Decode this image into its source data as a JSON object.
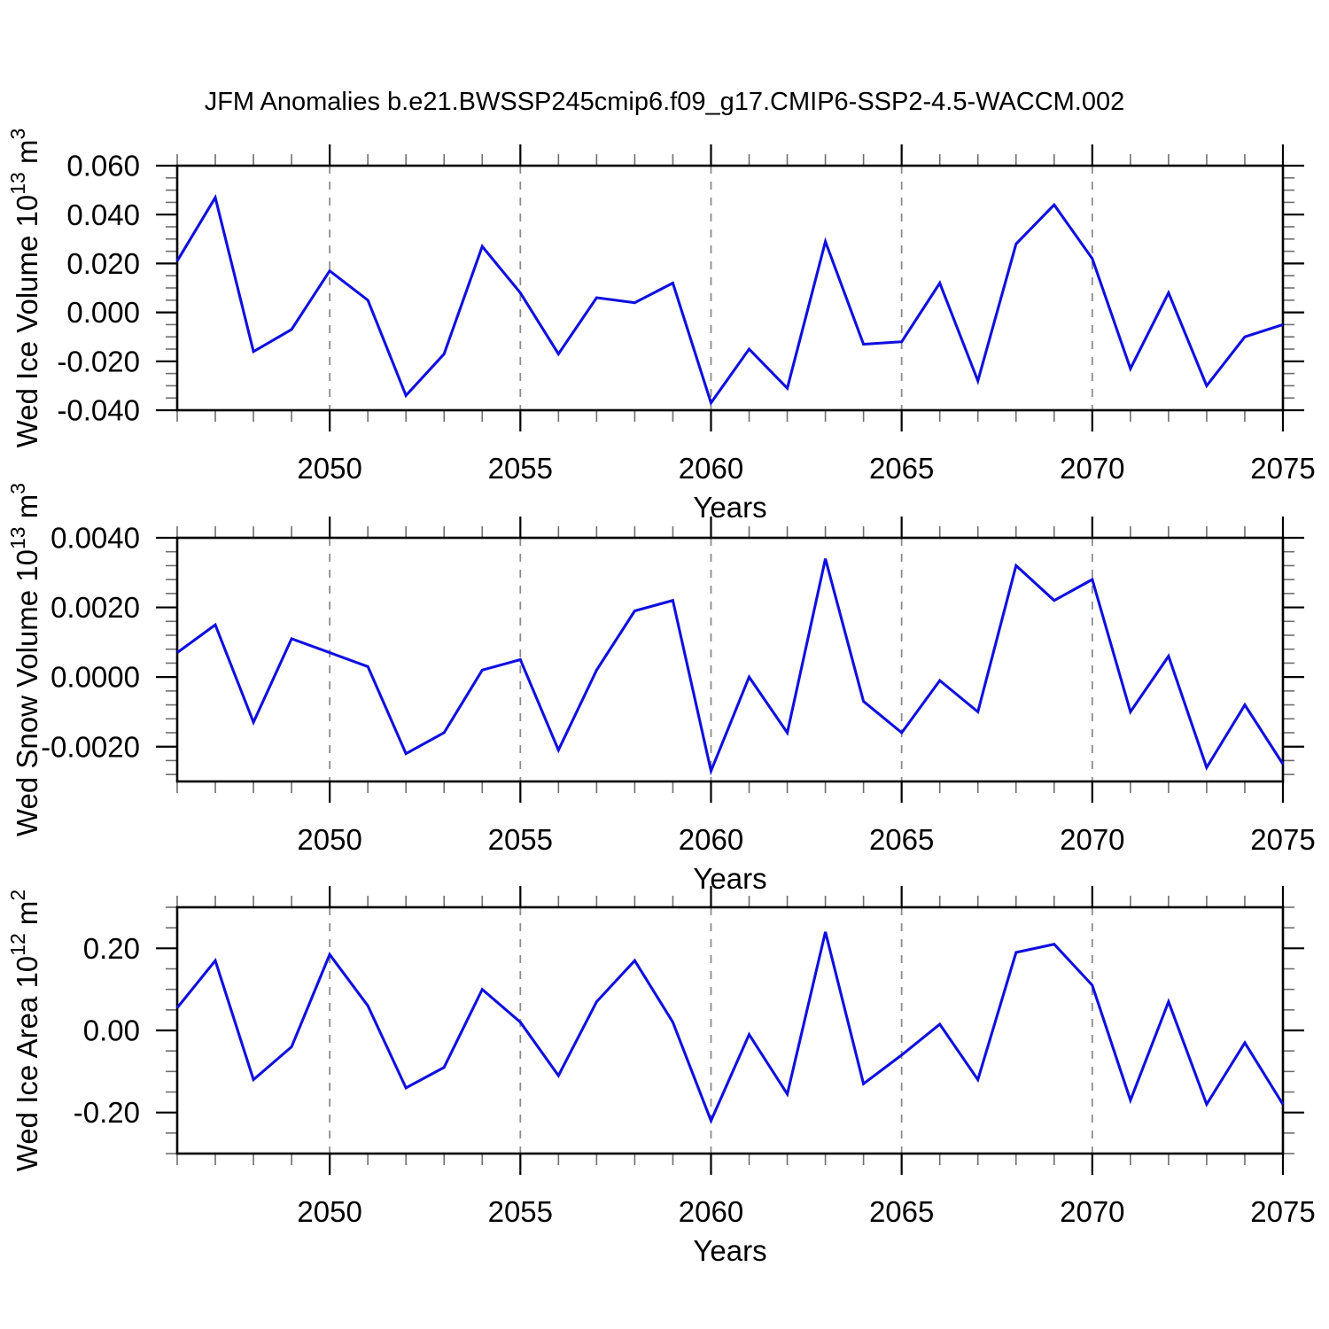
{
  "title": "JFM Anomalies b.e21.BWSSP245cmip6.f09_g17.CMIP6-SSP2-4.5-WACCM.002",
  "colors": {
    "line": "#0f0fe0",
    "axis": "#000000",
    "major_tick": "#000000",
    "minor_tick": "#6e6e6e",
    "gridline": "#8c8c8c",
    "text": "#000000",
    "background": "#ffffff"
  },
  "chart_data": {
    "type": "line",
    "x_label": "Years",
    "x": [
      2046,
      2047,
      2048,
      2049,
      2050,
      2051,
      2052,
      2053,
      2054,
      2055,
      2056,
      2057,
      2058,
      2059,
      2060,
      2061,
      2062,
      2063,
      2064,
      2065,
      2066,
      2067,
      2068,
      2069,
      2070,
      2071,
      2072,
      2073,
      2074,
      2075
    ],
    "x_range": [
      2046,
      2075
    ],
    "x_major_ticks": [
      2050,
      2055,
      2060,
      2065,
      2070,
      2075
    ],
    "x_major_tick_labels": [
      "2050",
      "2055",
      "2060",
      "2065",
      "2070",
      "2075"
    ],
    "x_gridlines": [
      2050,
      2055,
      2060,
      2065,
      2070
    ],
    "x_minor_step": 1,
    "grid_style": "dashed-vertical",
    "legend": "none",
    "series": [
      {
        "name": "Wed Ice Volume",
        "ylabel": {
          "base": "Wed Ice Volume 10",
          "exp": "13",
          "unit": " m",
          "unit_exp": "3"
        },
        "ylim": [
          -0.04,
          0.06
        ],
        "ytick_values": [
          0.06,
          0.04,
          0.02,
          0.0,
          -0.02,
          -0.04
        ],
        "ytick_labels": [
          "0.060",
          "0.040",
          "0.020",
          "0.000",
          "-0.020",
          "-0.040"
        ],
        "y_minor_step": 0.005,
        "values": [
          0.021,
          0.047,
          -0.016,
          -0.007,
          0.017,
          0.005,
          -0.034,
          -0.017,
          0.027,
          0.008,
          -0.017,
          0.006,
          0.004,
          0.012,
          -0.037,
          -0.015,
          -0.031,
          0.029,
          -0.013,
          -0.012,
          0.012,
          -0.028,
          0.028,
          0.044,
          0.022,
          -0.023,
          0.008,
          -0.03,
          -0.01,
          -0.005
        ]
      },
      {
        "name": "Wed Snow Volume",
        "ylabel": {
          "base": "Wed Snow Volume 10",
          "exp": "13",
          "unit": " m",
          "unit_exp": "3"
        },
        "ylim": [
          -0.003,
          0.004
        ],
        "ytick_values": [
          0.004,
          0.002,
          0.0,
          -0.002
        ],
        "ytick_labels": [
          "0.0040",
          "0.0020",
          "0.0000",
          "-0.0020"
        ],
        "y_minor_step": 0.0004,
        "values": [
          0.0007,
          0.0015,
          -0.0013,
          0.0011,
          0.0007,
          0.0003,
          -0.0022,
          -0.0016,
          0.0002,
          0.0005,
          -0.0021,
          0.0002,
          0.0019,
          0.0022,
          -0.0027,
          0.0,
          -0.0016,
          0.0034,
          -0.0007,
          -0.0016,
          -0.0001,
          -0.001,
          0.0032,
          0.0022,
          0.0028,
          -0.001,
          0.0006,
          -0.0026,
          -0.0008,
          -0.0025
        ]
      },
      {
        "name": "Wed Ice Area",
        "ylabel": {
          "base": "Wed Ice Area 10",
          "exp": "12",
          "unit": " m",
          "unit_exp": "2"
        },
        "ylim": [
          -0.3,
          0.3
        ],
        "ytick_values": [
          0.2,
          0.0,
          -0.2
        ],
        "ytick_labels": [
          "0.20",
          "0.00",
          "-0.20"
        ],
        "y_minor_step": 0.05,
        "values": [
          0.055,
          0.17,
          -0.12,
          -0.04,
          0.185,
          0.06,
          -0.14,
          -0.09,
          0.1,
          0.02,
          -0.11,
          0.07,
          0.17,
          0.02,
          -0.22,
          -0.01,
          -0.155,
          0.24,
          -0.13,
          -0.06,
          0.015,
          -0.12,
          0.19,
          0.21,
          0.11,
          -0.17,
          0.07,
          -0.18,
          -0.03,
          -0.18
        ]
      }
    ]
  }
}
